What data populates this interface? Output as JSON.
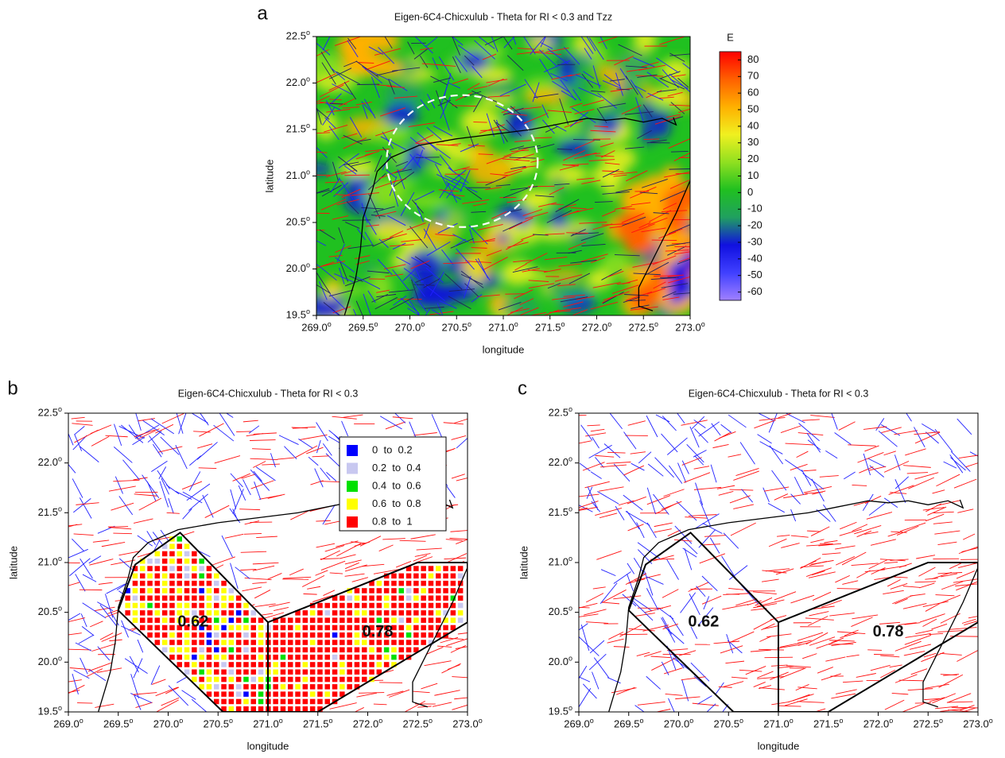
{
  "chart_data": [
    {
      "type": "map",
      "panel": "a",
      "title": "Eigen-6C4-Chicxulub - Theta for RI < 0.3 and Tzz",
      "xlabel": "longitude",
      "ylabel": "latitude",
      "xlim": [
        269,
        273
      ],
      "ylim": [
        19.5,
        22.5
      ],
      "xticks": [
        {
          "value": 269,
          "label": "269.0"
        },
        {
          "value": 269.5,
          "label": "269.5"
        },
        {
          "value": 270,
          "label": "270.0"
        },
        {
          "value": 270.5,
          "label": "270.5"
        },
        {
          "value": 271,
          "label": "271.0"
        },
        {
          "value": 271.5,
          "label": "271.5"
        },
        {
          "value": 272,
          "label": "272.0"
        },
        {
          "value": 272.5,
          "label": "272.5"
        },
        {
          "value": 273,
          "label": "273.0"
        }
      ],
      "yticks": [
        {
          "value": 19.5,
          "label": "19.5"
        },
        {
          "value": 20,
          "label": "20.0"
        },
        {
          "value": 20.5,
          "label": "20.5"
        },
        {
          "value": 21,
          "label": "21.0"
        },
        {
          "value": 21.5,
          "label": "21.5"
        },
        {
          "value": 22,
          "label": "22.0"
        },
        {
          "value": 22.5,
          "label": "22.5"
        }
      ],
      "tick_suffix": "o",
      "colorbar": {
        "label": "E",
        "lim": [
          -65,
          85
        ],
        "ticks": [
          80,
          70,
          60,
          50,
          40,
          30,
          20,
          10,
          0,
          -10,
          -20,
          -30,
          -40,
          -50,
          -60
        ],
        "colors": [
          "#a080ff",
          "#4040ff",
          "#1010e0",
          "#20a060",
          "#20c020",
          "#90e020",
          "#f0f020",
          "#ffb000",
          "#ff6000",
          "#ff0000"
        ]
      }
    },
    {
      "type": "map",
      "panel": "b",
      "title": "Eigen-6C4-Chicxulub - Theta for RI < 0.3",
      "xlabel": "longitude",
      "ylabel": "latitude",
      "xlim": [
        269,
        273
      ],
      "ylim": [
        19.5,
        22.5
      ],
      "xticks": [
        {
          "value": 269,
          "label": "269.0"
        },
        {
          "value": 269.5,
          "label": "269.5"
        },
        {
          "value": 270,
          "label": "270.0"
        },
        {
          "value": 270.5,
          "label": "270.5"
        },
        {
          "value": 271,
          "label": "271.0"
        },
        {
          "value": 271.5,
          "label": "271.5"
        },
        {
          "value": 272,
          "label": "272.0"
        },
        {
          "value": 272.5,
          "label": "272.5"
        },
        {
          "value": 273,
          "label": "273.0"
        }
      ],
      "yticks": [
        {
          "value": 19.5,
          "label": "19.5"
        },
        {
          "value": 20,
          "label": "20.0"
        },
        {
          "value": 20.5,
          "label": "20.5"
        },
        {
          "value": 21,
          "label": "21.0"
        },
        {
          "value": 21.5,
          "label": "21.5"
        },
        {
          "value": 22,
          "label": "22.0"
        },
        {
          "value": 22.5,
          "label": "22.5"
        }
      ],
      "tick_suffix": "o",
      "legend": [
        {
          "name": "0  to  0.2",
          "color": "#0000ff"
        },
        {
          "name": "0.2  to  0.4",
          "color": "#c8c8f0"
        },
        {
          "name": "0.4  to  0.6",
          "color": "#00e000"
        },
        {
          "name": "0.6  to  0.8",
          "color": "#ffff00"
        },
        {
          "name": "0.8  to  1",
          "color": "#ff0000"
        }
      ],
      "annotations": [
        {
          "text": "0.62",
          "x": 270.25,
          "y": 20.4
        },
        {
          "text": "0.78",
          "x": 272.1,
          "y": 20.3
        }
      ]
    },
    {
      "type": "map",
      "panel": "c",
      "title": "Eigen-6C4-Chicxulub - Theta for RI < 0.3",
      "xlabel": "longitude",
      "ylabel": "latitude",
      "xlim": [
        269,
        273
      ],
      "ylim": [
        19.5,
        22.5
      ],
      "xticks": [
        {
          "value": 269,
          "label": "269.0"
        },
        {
          "value": 269.5,
          "label": "269.5"
        },
        {
          "value": 270,
          "label": "270.0"
        },
        {
          "value": 270.5,
          "label": "270.5"
        },
        {
          "value": 271,
          "label": "271.0"
        },
        {
          "value": 271.5,
          "label": "271.5"
        },
        {
          "value": 272,
          "label": "272.0"
        },
        {
          "value": 272.5,
          "label": "272.5"
        },
        {
          "value": 273,
          "label": "273.0"
        }
      ],
      "yticks": [
        {
          "value": 19.5,
          "label": "19.5"
        },
        {
          "value": 20,
          "label": "20.0"
        },
        {
          "value": 20.5,
          "label": "20.5"
        },
        {
          "value": 21,
          "label": "21.0"
        },
        {
          "value": 21.5,
          "label": "21.5"
        },
        {
          "value": 22,
          "label": "22.0"
        },
        {
          "value": 22.5,
          "label": "22.5"
        }
      ],
      "tick_suffix": "o",
      "annotations": [
        {
          "text": "0.62",
          "x": 270.25,
          "y": 20.4
        },
        {
          "text": "0.78",
          "x": 272.1,
          "y": 20.3
        }
      ]
    }
  ]
}
